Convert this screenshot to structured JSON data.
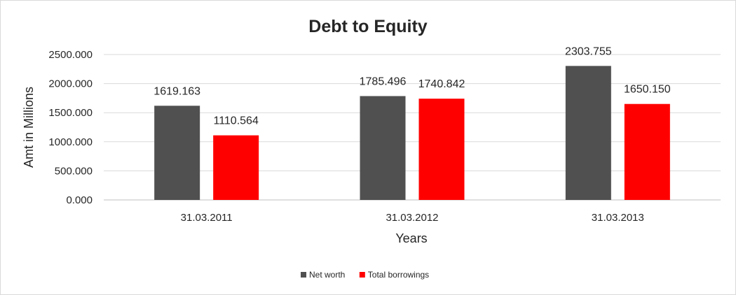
{
  "chart_data": {
    "type": "bar",
    "title": "Debt to Equity",
    "xlabel": "Years",
    "ylabel": "Amt in Millions",
    "categories": [
      "31.03.2011",
      "31.03.2012",
      "31.03.2013"
    ],
    "series": [
      {
        "name": "Net worth",
        "color": "#505050",
        "values": [
          1619.163,
          1785.496,
          2303.755
        ],
        "labels": [
          "1619.163",
          "1785.496",
          "2303.755"
        ]
      },
      {
        "name": "Total borrowings",
        "color": "#ff0000",
        "values": [
          1110.564,
          1740.842,
          1650.15
        ],
        "labels": [
          "1110.564",
          "1740.842",
          "1650.150"
        ]
      }
    ],
    "ylim": [
      0,
      2500
    ],
    "yticks": [
      "0.000",
      "500.000",
      "1000.000",
      "1500.000",
      "2000.000",
      "2500.000"
    ],
    "grid": true,
    "legend": "bottom"
  }
}
